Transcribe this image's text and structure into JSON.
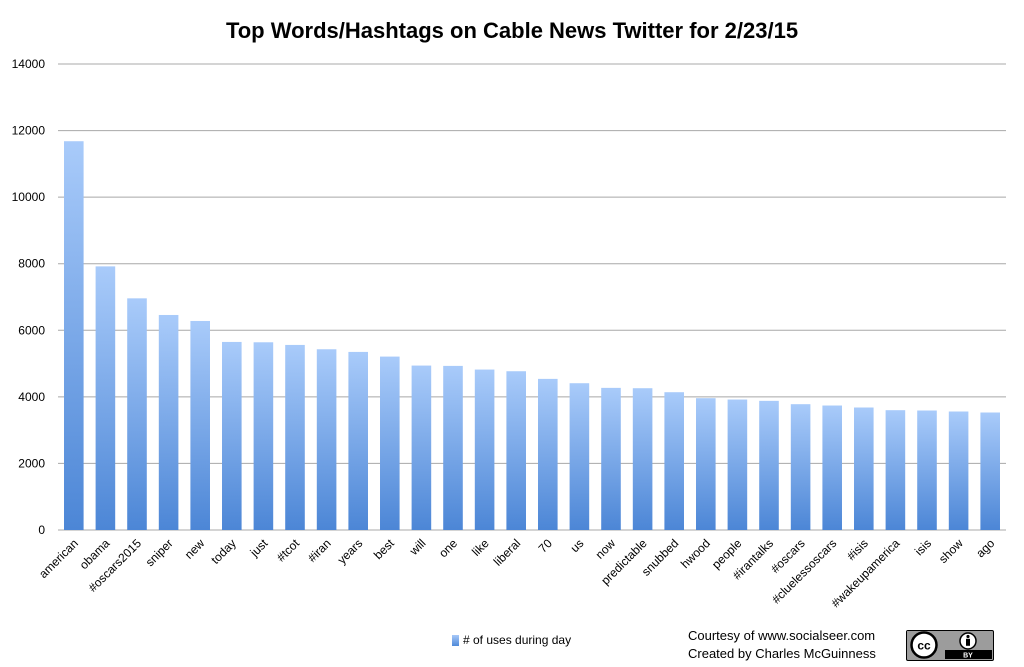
{
  "chart_data": {
    "type": "bar",
    "title": "Top Words/Hashtags on Cable News Twitter for 2/23/15",
    "xlabel": "",
    "ylabel": "",
    "ylim": [
      0,
      14000
    ],
    "yticks": [
      0,
      2000,
      4000,
      6000,
      8000,
      10000,
      12000,
      14000
    ],
    "grid": true,
    "legend_position": "bottom",
    "categories": [
      "american",
      "obama",
      "#oscars2015",
      "sniper",
      "new",
      "today",
      "just",
      "#tcot",
      "#iran",
      "years",
      "best",
      "will",
      "one",
      "like",
      "liberal",
      "70",
      "us",
      "now",
      "predictable",
      "snubbed",
      "hwood",
      "people",
      "#irantalks",
      "#oscars",
      "#cluelessoscars",
      "#isis",
      "#wakeupamerica",
      "isis",
      "show",
      "ago"
    ],
    "series": [
      {
        "name": "# of uses during day",
        "values": [
          11680,
          7920,
          6960,
          6460,
          6280,
          5650,
          5640,
          5560,
          5430,
          5350,
          5210,
          4940,
          4930,
          4820,
          4770,
          4540,
          4410,
          4270,
          4260,
          4140,
          3960,
          3920,
          3880,
          3780,
          3740,
          3680,
          3600,
          3590,
          3560,
          3530
        ]
      }
    ],
    "colors": {
      "bar_top": "#a9cbfa",
      "bar_bottom": "#4c86d6",
      "grid": "#a8a8a8"
    }
  },
  "footer": {
    "credit_line1": "Courtesy of www.socialseer.com",
    "credit_line2": "Created by Charles McGuinness",
    "license_icon": "cc-by-icon",
    "license_cc": "cc",
    "license_by": "BY"
  }
}
